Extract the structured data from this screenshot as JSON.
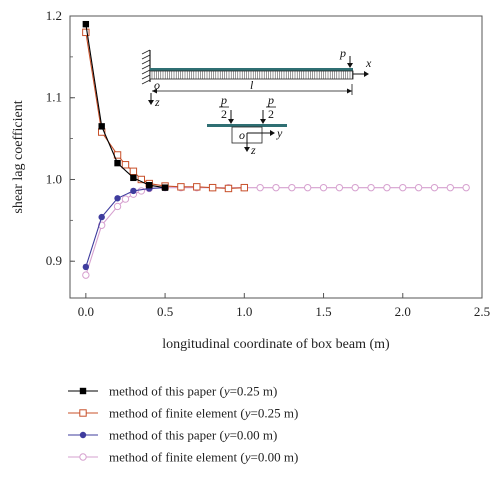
{
  "chart_data": {
    "type": "line",
    "title": "",
    "xlabel": "longitudinal coordinate of box beam (m)",
    "ylabel": "shear lag coefficient",
    "xlim": [
      -0.1,
      2.5
    ],
    "ylim": [
      0.855,
      1.2
    ],
    "x_ticks": [
      "0.0",
      "0.5",
      "1.0",
      "1.5",
      "2.0",
      "2.5"
    ],
    "x_tick_values": [
      0.0,
      0.5,
      1.0,
      1.5,
      2.0,
      2.5
    ],
    "y_ticks": [
      "0.9",
      "1.0",
      "1.1",
      "1.2"
    ],
    "y_tick_values": [
      0.9,
      1.0,
      1.1,
      1.2
    ],
    "grid": false,
    "legend_position": "bottom",
    "series": [
      {
        "legend_parts": [
          "method of this paper (",
          "y",
          "=0.25 m)"
        ],
        "color": "#000000",
        "marker": "filled-square",
        "x": [
          0.0,
          0.1,
          0.2,
          0.3,
          0.4,
          0.5
        ],
        "y": [
          1.19,
          1.065,
          1.02,
          1.002,
          0.993,
          0.99
        ]
      },
      {
        "legend_parts": [
          "method of finite element (",
          "y",
          "=0.25 m)"
        ],
        "color": "#c8502a",
        "marker": "open-square",
        "x": [
          0.0,
          0.1,
          0.2,
          0.25,
          0.3,
          0.35,
          0.4,
          0.5,
          0.6,
          0.7,
          0.8,
          0.9,
          1.0
        ],
        "y": [
          1.18,
          1.058,
          1.03,
          1.018,
          1.01,
          1.0,
          0.995,
          0.992,
          0.991,
          0.991,
          0.99,
          0.989,
          0.99
        ]
      },
      {
        "legend_parts": [
          "method of this paper (",
          "y",
          "=0.00 m)"
        ],
        "color": "#3f3c9e",
        "marker": "filled-circle",
        "x": [
          0.0,
          0.1,
          0.2,
          0.3,
          0.4,
          0.5
        ],
        "y": [
          0.893,
          0.954,
          0.977,
          0.986,
          0.989,
          0.99
        ]
      },
      {
        "legend_parts": [
          "method of finite element (",
          "y",
          "=0.00 m)"
        ],
        "color": "#d6a0cf",
        "marker": "open-circle",
        "x": [
          0.0,
          0.1,
          0.2,
          0.25,
          0.3,
          0.35,
          0.4,
          0.5,
          0.6,
          0.7,
          0.8,
          0.9,
          1.0,
          1.1,
          1.2,
          1.3,
          1.4,
          1.5,
          1.6,
          1.7,
          1.8,
          1.9,
          2.0,
          2.1,
          2.2,
          2.3,
          2.4
        ],
        "y": [
          0.883,
          0.944,
          0.967,
          0.976,
          0.982,
          0.986,
          0.989,
          0.99,
          0.99,
          0.99,
          0.99,
          0.99,
          0.99,
          0.99,
          0.99,
          0.99,
          0.99,
          0.99,
          0.99,
          0.99,
          0.99,
          0.99,
          0.99,
          0.99,
          0.99,
          0.99,
          0.99
        ]
      }
    ],
    "inset": {
      "labels": {
        "p_top": "p",
        "x": "x",
        "o_beam": "o",
        "z_beam": "z",
        "l": "l",
        "p_num": "p",
        "two": "2",
        "o_section": "o",
        "y": "y",
        "z_section": "z"
      }
    }
  }
}
